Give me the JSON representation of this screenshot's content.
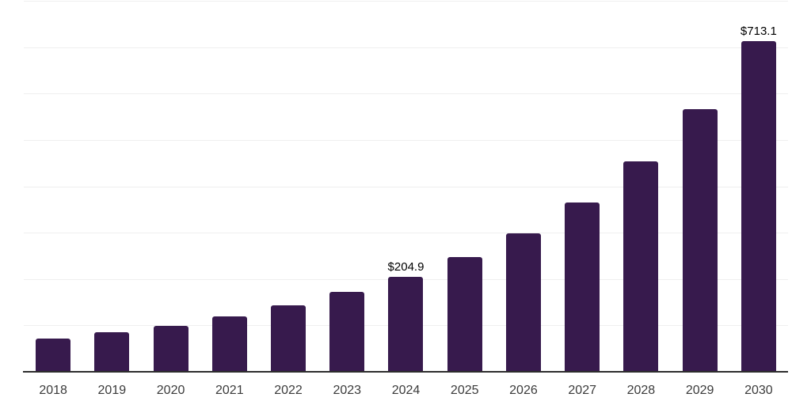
{
  "chart_data": {
    "type": "bar",
    "title": "",
    "xlabel": "",
    "ylabel": "",
    "categories": [
      "2018",
      "2019",
      "2020",
      "2021",
      "2022",
      "2023",
      "2024",
      "2025",
      "2026",
      "2027",
      "2028",
      "2029",
      "2030"
    ],
    "values": [
      72.2,
      85.9,
      99.5,
      119.5,
      143.4,
      172.4,
      204.9,
      247.0,
      298.2,
      364.8,
      454.6,
      566.2,
      713.1
    ],
    "point_labels": [
      "",
      "",
      "",
      "",
      "",
      "",
      "$204.9",
      "",
      "",
      "",
      "",
      "",
      "$713.1"
    ],
    "ylim": [
      0,
      800
    ],
    "gridline_step": 100,
    "grid": true,
    "legend_position": "none",
    "bar_color": "#371A4D"
  },
  "colors": {
    "bar": "#371A4D",
    "axis_line": "#2D2D2D",
    "gridline": "#EFEFEF",
    "tick_label": "#3B3B3B",
    "value_label": "#000000",
    "background": "#FFFFFF"
  }
}
